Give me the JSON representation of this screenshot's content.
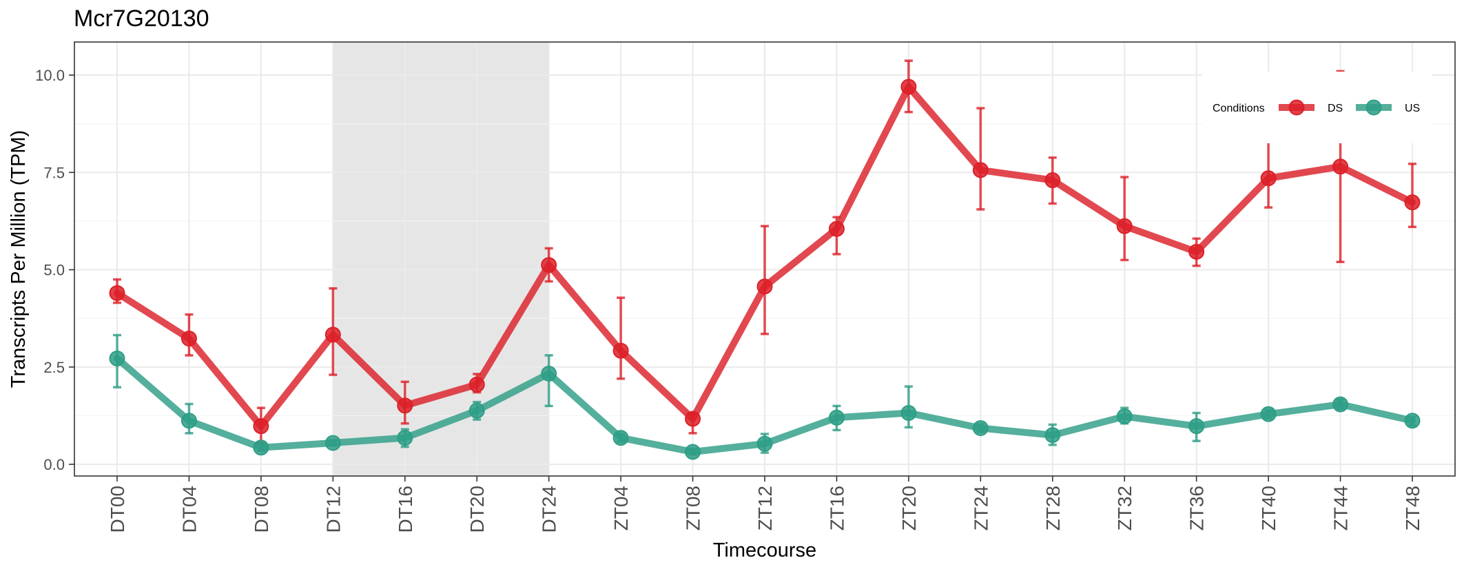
{
  "chart_data": {
    "type": "line",
    "title": "Mcr7G20130",
    "xlabel": "Timecourse",
    "ylabel": "Transcripts Per Million (TPM)",
    "categories": [
      "DT00",
      "DT04",
      "DT08",
      "DT12",
      "DT16",
      "DT20",
      "DT24",
      "ZT04",
      "ZT08",
      "ZT12",
      "ZT16",
      "ZT20",
      "ZT24",
      "ZT28",
      "ZT32",
      "ZT36",
      "ZT40",
      "ZT44",
      "ZT48"
    ],
    "ylim": [
      -0.3,
      10.85
    ],
    "y_ticks": [
      0.0,
      2.5,
      5.0,
      7.5,
      10.0
    ],
    "y_tick_labels": [
      "0.0",
      "2.5",
      "5.0",
      "7.5",
      "10.0"
    ],
    "grid": true,
    "shaded_region": {
      "from": "DT12",
      "to": "DT24",
      "color": "#e6e6e6"
    },
    "legend": {
      "title": "Conditions",
      "position": "top-right"
    },
    "series": [
      {
        "name": "DS",
        "color": "#dc2028",
        "values": [
          4.4,
          3.23,
          0.98,
          3.33,
          1.51,
          2.05,
          5.12,
          2.92,
          1.17,
          4.57,
          6.05,
          9.7,
          7.56,
          7.3,
          6.12,
          5.46,
          7.35,
          7.65,
          6.73
        ],
        "err_low": [
          4.15,
          2.8,
          0.55,
          2.3,
          1.05,
          1.85,
          4.7,
          2.2,
          0.8,
          3.35,
          5.4,
          9.05,
          6.55,
          6.7,
          5.25,
          5.1,
          6.6,
          5.2,
          6.1
        ],
        "err_high": [
          4.75,
          3.85,
          1.45,
          4.52,
          2.12,
          2.32,
          5.55,
          4.28,
          1.3,
          6.12,
          6.35,
          10.37,
          9.15,
          7.88,
          7.38,
          5.8,
          8.28,
          10.1,
          7.72
        ]
      },
      {
        "name": "US",
        "color": "#2e9e86",
        "values": [
          2.72,
          1.12,
          0.43,
          0.55,
          0.68,
          1.38,
          2.33,
          0.68,
          0.32,
          0.53,
          1.2,
          1.32,
          0.93,
          0.75,
          1.23,
          0.98,
          1.29,
          1.54,
          1.12
        ],
        "err_low": [
          1.98,
          0.8,
          0.35,
          0.48,
          0.45,
          1.15,
          1.5,
          0.58,
          0.25,
          0.3,
          0.88,
          0.95,
          0.83,
          0.5,
          1.05,
          0.6,
          1.18,
          1.42,
          1.0
        ],
        "err_high": [
          3.32,
          1.55,
          0.52,
          0.62,
          0.9,
          1.6,
          2.8,
          0.78,
          0.4,
          0.78,
          1.5,
          2.0,
          1.03,
          1.02,
          1.45,
          1.32,
          1.4,
          1.66,
          1.22
        ]
      }
    ]
  }
}
